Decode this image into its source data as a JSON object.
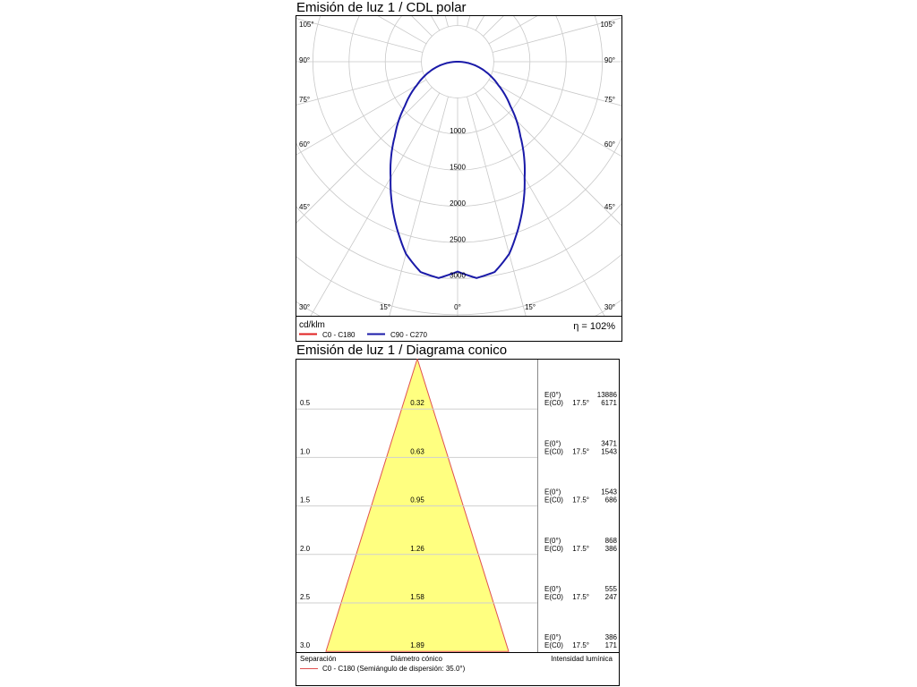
{
  "polar": {
    "title": "Emisión de luz 1 / CDL polar",
    "unit": "cd/klm",
    "efficiency": "η = 102%",
    "legend": [
      {
        "label": "C0 - C180",
        "color": "#e02020"
      },
      {
        "label": "C90 - C270",
        "color": "#1a1aa8"
      }
    ],
    "angle_labels_left": [
      "105°",
      "90°",
      "75°",
      "60°",
      "45°",
      "30°"
    ],
    "angle_labels_right": [
      "105°",
      "90°",
      "75°",
      "60°",
      "45°",
      "30°"
    ],
    "angle_labels_bottom": [
      "15°",
      "0°",
      "15°"
    ],
    "radial_labels": [
      "1000",
      "1500",
      "2000",
      "2500",
      "3000"
    ]
  },
  "cone": {
    "title": "Emisión de luz 1 / Diagrama conico",
    "footer": {
      "separation": "Separación",
      "diameter": "Diámetro cónico",
      "intensity": "Intensidad lumínica"
    },
    "legend": {
      "label": "C0 - C180 (Semiángulo de dispersión: 35.0°)",
      "color": "#e05050"
    },
    "fill_color": "#ffff80",
    "rows": [
      {
        "sep": "0.5",
        "diam": "0.32",
        "e0_label": "E(0°)",
        "e0": "13886",
        "ec_label": "E(C0)",
        "ec_angle": "17.5°",
        "ec": "6171"
      },
      {
        "sep": "1.0",
        "diam": "0.63",
        "e0_label": "E(0°)",
        "e0": "3471",
        "ec_label": "E(C0)",
        "ec_angle": "17.5°",
        "ec": "1543"
      },
      {
        "sep": "1.5",
        "diam": "0.95",
        "e0_label": "E(0°)",
        "e0": "1543",
        "ec_label": "E(C0)",
        "ec_angle": "17.5°",
        "ec": "686"
      },
      {
        "sep": "2.0",
        "diam": "1.26",
        "e0_label": "E(0°)",
        "e0": "868",
        "ec_label": "E(C0)",
        "ec_angle": "17.5°",
        "ec": "386"
      },
      {
        "sep": "2.5",
        "diam": "1.58",
        "e0_label": "E(0°)",
        "e0": "555",
        "ec_label": "E(C0)",
        "ec_angle": "17.5°",
        "ec": "247"
      },
      {
        "sep": "3.0",
        "diam": "1.89",
        "e0_label": "E(0°)",
        "e0": "386",
        "ec_label": "E(C0)",
        "ec_angle": "17.5°",
        "ec": "171"
      }
    ]
  },
  "chart_data": [
    {
      "type": "polar",
      "title": "Emisión de luz 1 / CDL polar",
      "unit": "cd/klm",
      "radial_ticks": [
        1000,
        1500,
        2000,
        2500,
        3000
      ],
      "series": [
        {
          "name": "C90 - C270",
          "angles_deg": [
            0,
            5,
            10,
            15,
            20,
            25,
            30,
            35,
            40,
            45,
            50,
            55,
            60,
            70,
            80,
            90
          ],
          "values": [
            2900,
            3000,
            2950,
            2750,
            2450,
            2150,
            1850,
            1600,
            1350,
            1150,
            950,
            800,
            650,
            420,
            210,
            0
          ]
        }
      ],
      "efficiency": "η = 102%"
    },
    {
      "type": "table",
      "title": "Emisión de luz 1 / Diagrama conico",
      "half_angle_deg": 35.0,
      "separation": [
        0.5,
        1.0,
        1.5,
        2.0,
        2.5,
        3.0
      ],
      "diameter": [
        0.32,
        0.63,
        0.95,
        1.26,
        1.58,
        1.89
      ],
      "E_0": [
        13886,
        3471,
        1543,
        868,
        555,
        386
      ],
      "E_C0_17_5": [
        6171,
        1543,
        686,
        386,
        247,
        171
      ]
    }
  ]
}
